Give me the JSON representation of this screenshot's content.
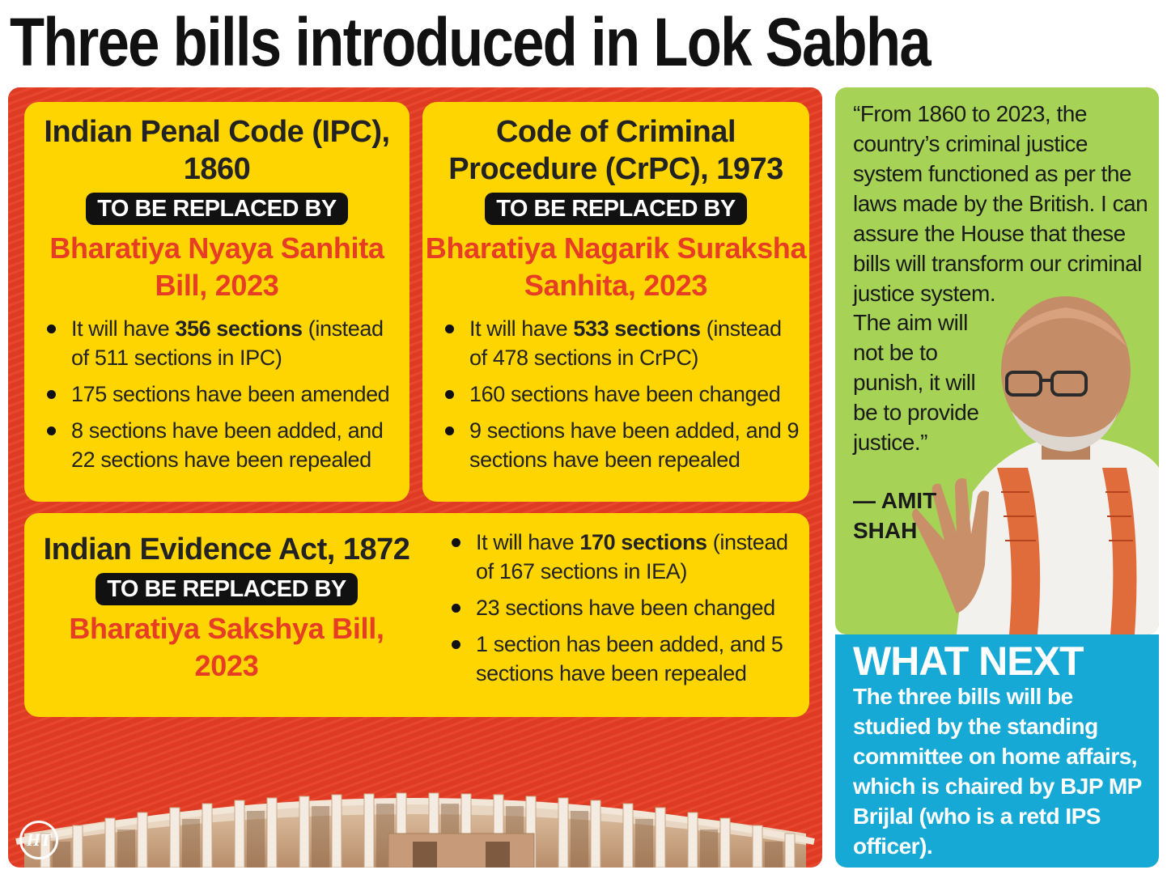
{
  "headline": "Three bills introduced in Lok Sabha",
  "ipc": {
    "title": "Indian Penal Code (IPC), 1860",
    "replace_label": "TO BE REPLACED BY",
    "new_law": "Bharatiya Nyaya Sanhita Bill, 2023",
    "b1_pre": "It will have ",
    "b1_bold": "356 sections",
    "b1_post": " (instead of 511 sections in IPC)",
    "b2": "175 sections have been amended",
    "b3": "8 sections have been added, and 22 sections have been repealed"
  },
  "crpc": {
    "title": "Code of Criminal Procedure (CrPC), 1973",
    "replace_label": "TO BE REPLACED BY",
    "new_law": "Bharatiya Nagarik Suraksha Sanhita, 2023",
    "b1_pre": "It will have ",
    "b1_bold": "533 sections",
    "b1_post": " (instead of 478 sections in CrPC)",
    "b2": "160 sections have been changed",
    "b3": "9 sections have been added, and 9 sections have been repealed"
  },
  "iea": {
    "title": "Indian Evidence Act, 1872",
    "replace_label": "TO BE REPLACED BY",
    "new_law": "Bharatiya Sakshya Bill, 2023",
    "b1_pre": "It will have ",
    "b1_bold": "170 sections",
    "b1_post": " (instead of 167 sections in IEA)",
    "b2": "23 sections have been changed",
    "b3": "1 section has been added, and 5 sections have been repealed"
  },
  "logo_text": "HT",
  "quote": {
    "text_top": "“From 1860 to 2023, the country’s criminal justice system functioned as per the laws made by the British. I can assure the House that these bills will transform our criminal justice system.",
    "text_bottom": "The aim will not be to punish, it will be to provide justice.”",
    "attribution": "— AMIT SHAH"
  },
  "what_next": {
    "title": "WHAT NEXT",
    "body": "The three bills will be studied by the standing committee on home affairs, which is chaired by BJP MP Brijlal (who is a retd IPS officer)."
  },
  "colors": {
    "red_panel": "#e63d24",
    "card_yellow": "#ffd500",
    "quote_green": "#a6d256",
    "next_blue": "#17a9d6"
  }
}
